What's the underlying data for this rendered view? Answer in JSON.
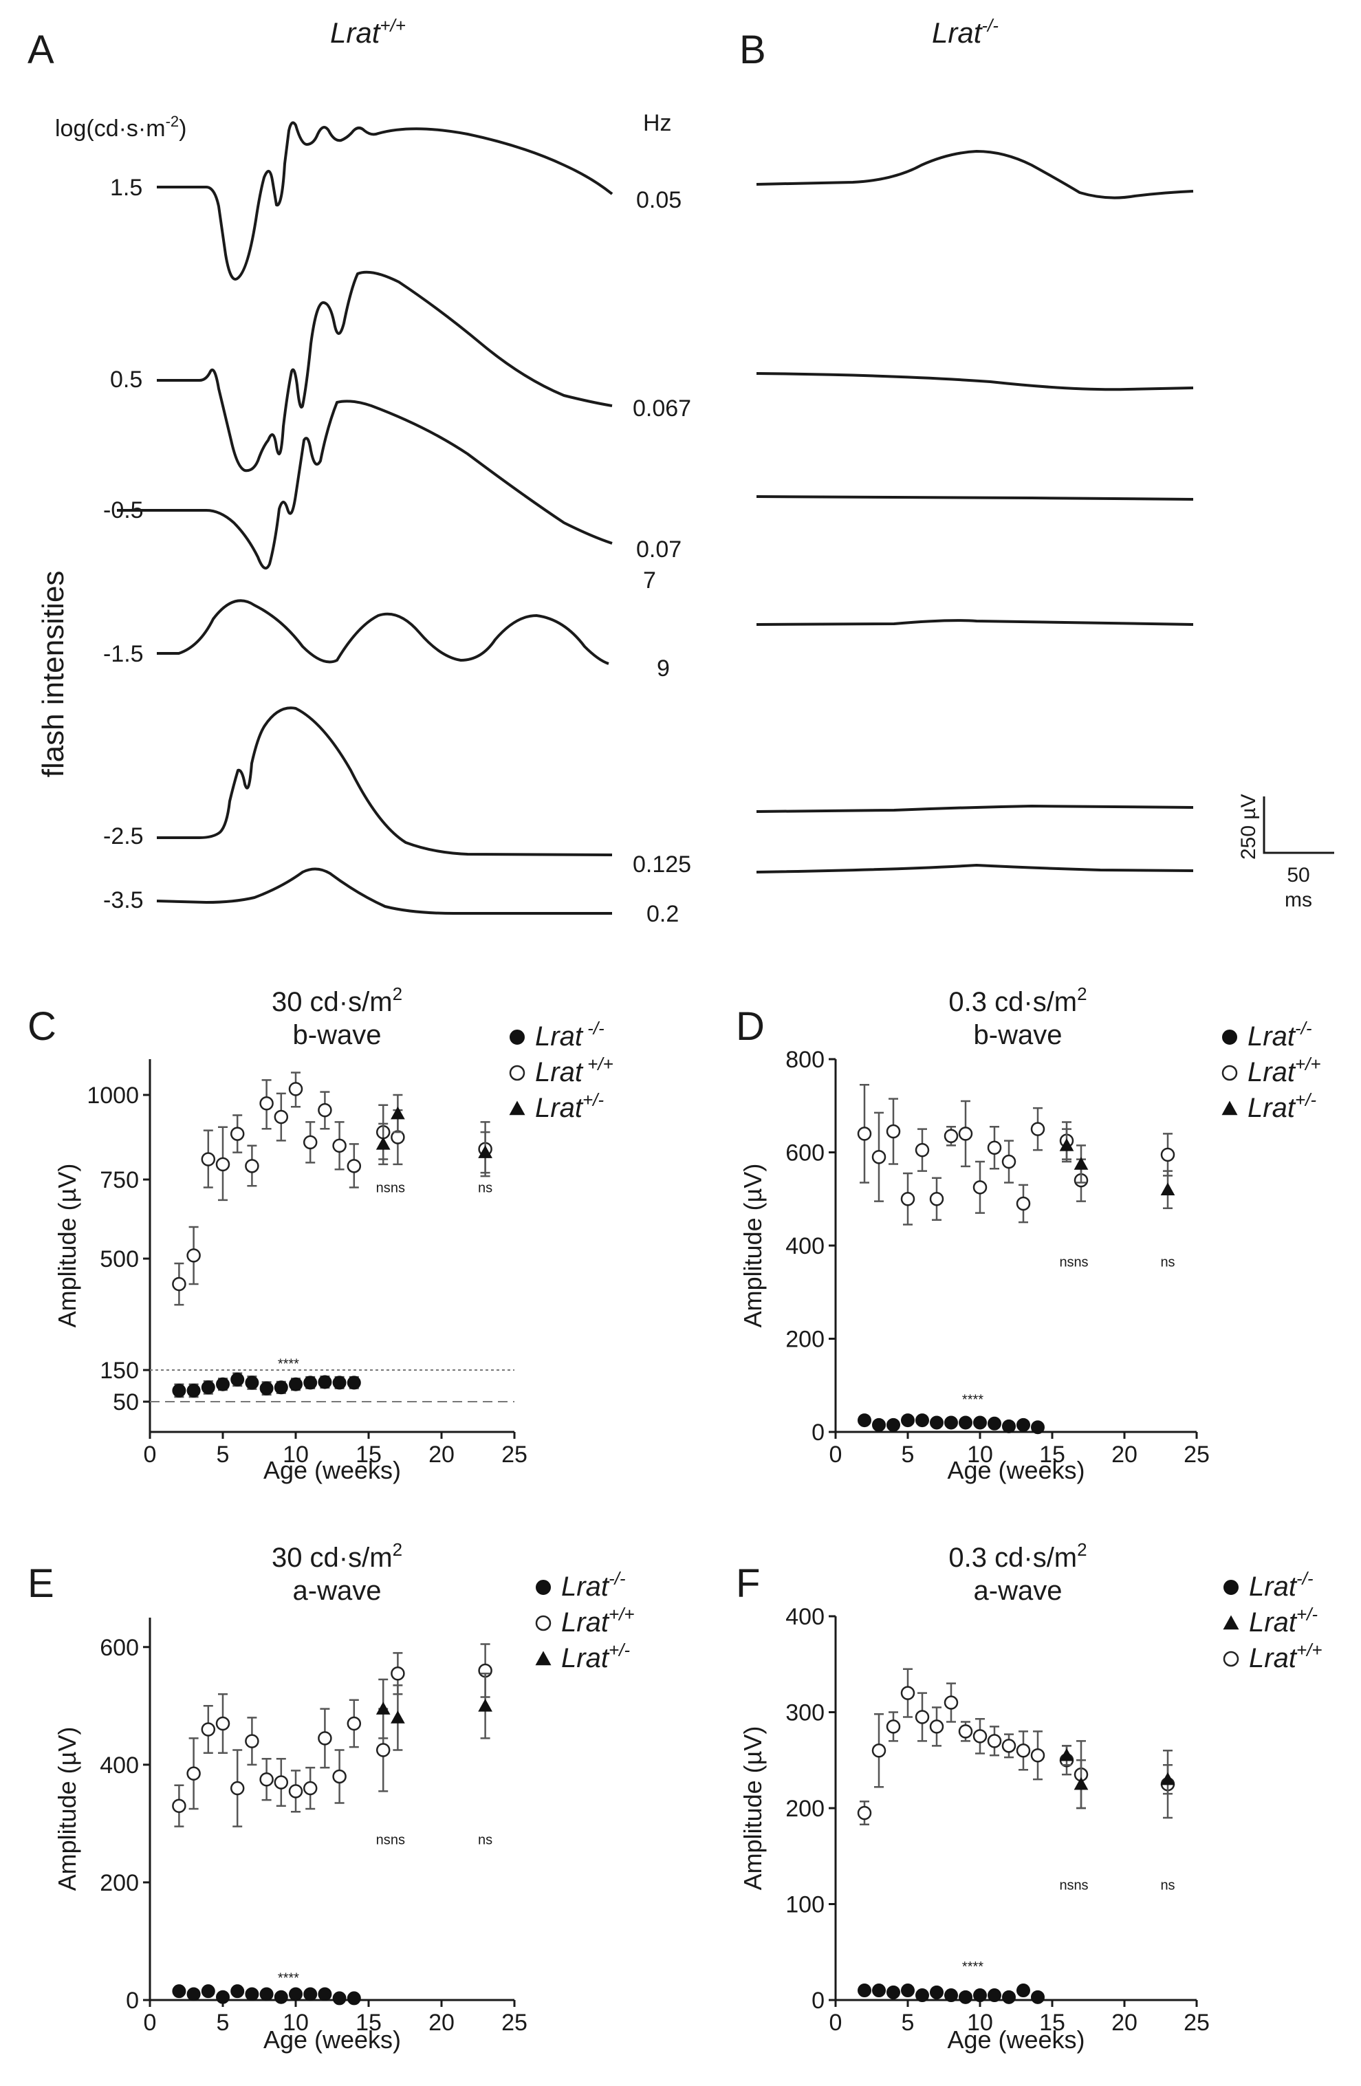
{
  "traces": {
    "panel_letters": [
      "A",
      "B"
    ],
    "title_wt": "Lrat",
    "title_wt_sup": "+/+",
    "title_ko": "Lrat",
    "title_ko_sup": "-/-",
    "intensity_unit": "log(cd·s·m",
    "intensity_unit_sup": "-2",
    "intensity_unit_end": ")",
    "freq_unit": "Hz",
    "y_label": "flash intensities",
    "intensities": [
      "1.5",
      "0.5",
      "-0.5",
      "-1.5",
      "-2.5",
      "-3.5"
    ],
    "frequencies": [
      "0.05",
      "0.067",
      "0.07",
      "7",
      "9",
      "0.125",
      "0.2"
    ],
    "scale_bar": {
      "voltage": "250 µV",
      "time": "50",
      "time_unit": "ms"
    }
  },
  "chart_data": [
    {
      "panel": "C",
      "type": "scatter",
      "title_line1": "30 cd·s/m",
      "title_sup": "2",
      "title_line2": "b-wave",
      "xlabel": "Age (weeks)",
      "ylabel": "Amplitude (µV)",
      "xlim": [
        0,
        25
      ],
      "xticks": [
        "0",
        "5",
        "10",
        "15",
        "20",
        "25"
      ],
      "ylim": [
        0,
        1120
      ],
      "yticks": [
        "50",
        "150",
        "500",
        "750",
        "1000"
      ],
      "ytick_values": [
        50,
        150,
        500,
        750,
        1000
      ],
      "ref_lines": [
        150,
        50
      ],
      "legend": [
        {
          "name": "Lrat",
          "sup": " -/-",
          "marker": "filled-circle"
        },
        {
          "name": "Lrat",
          "sup": " +/+",
          "marker": "open-circle"
        },
        {
          "name": "Lrat",
          "sup": "+/-",
          "marker": "filled-triangle"
        }
      ],
      "series": [
        {
          "name": "Lrat -/-",
          "marker": "filled-circle",
          "x": [
            2,
            3,
            4,
            5,
            6,
            7,
            8,
            9,
            10,
            11,
            12,
            13,
            14
          ],
          "y": [
            85,
            85,
            95,
            105,
            120,
            110,
            92,
            95,
            105,
            110,
            112,
            110,
            110
          ],
          "err": [
            20,
            20,
            20,
            18,
            20,
            20,
            20,
            18,
            18,
            18,
            18,
            18,
            18
          ]
        },
        {
          "name": "Lrat +/+",
          "marker": "open-circle",
          "x": [
            2,
            3,
            4,
            5,
            6,
            7,
            8,
            9,
            10,
            11,
            12,
            13,
            14,
            16,
            17,
            23
          ],
          "y": [
            420,
            510,
            810,
            795,
            885,
            790,
            975,
            935,
            1020,
            860,
            955,
            850,
            790,
            890,
            875,
            840
          ],
          "err": [
            65,
            90,
            85,
            110,
            55,
            60,
            75,
            70,
            55,
            60,
            55,
            70,
            65,
            80,
            80,
            80
          ]
        },
        {
          "name": "Lrat +/-",
          "marker": "filled-triangle",
          "x": [
            16,
            17,
            23
          ],
          "y": [
            855,
            945,
            830
          ],
          "err": [
            60,
            55,
            60
          ]
        }
      ],
      "annotations": [
        {
          "text": "****",
          "x": 9.5,
          "y": 155
        },
        {
          "text": "ns",
          "x": 16,
          "y": 710
        },
        {
          "text": "ns",
          "x": 17,
          "y": 710
        },
        {
          "text": "ns",
          "x": 23,
          "y": 710
        }
      ]
    },
    {
      "panel": "D",
      "type": "scatter",
      "title_line1": "0.3 cd·s/m",
      "title_sup": "2",
      "title_line2": "b-wave",
      "xlabel": "Age (weeks)",
      "ylabel": "Amplitude (µV)",
      "xlim": [
        0,
        25
      ],
      "xticks": [
        "0",
        "5",
        "10",
        "15",
        "20",
        "25"
      ],
      "ylim": [
        0,
        800
      ],
      "yticks": [
        "0",
        "200",
        "400",
        "600",
        "800"
      ],
      "ytick_values": [
        0,
        200,
        400,
        600,
        800
      ],
      "ref_lines": [],
      "legend": [
        {
          "name": "Lrat",
          "sup": "-/-",
          "marker": "filled-circle"
        },
        {
          "name": "Lrat",
          "sup": "+/+",
          "marker": "open-circle"
        },
        {
          "name": "Lrat",
          "sup": "+/-",
          "marker": "filled-triangle"
        }
      ],
      "series": [
        {
          "name": "Lrat -/-",
          "marker": "filled-circle",
          "x": [
            2,
            3,
            4,
            5,
            6,
            7,
            8,
            9,
            10,
            11,
            12,
            13,
            14
          ],
          "y": [
            25,
            15,
            15,
            25,
            25,
            20,
            20,
            20,
            20,
            18,
            12,
            15,
            10
          ],
          "err": [
            3,
            3,
            3,
            3,
            3,
            3,
            3,
            3,
            3,
            3,
            3,
            3,
            3
          ]
        },
        {
          "name": "Lrat +/+",
          "marker": "open-circle",
          "x": [
            2,
            3,
            4,
            5,
            6,
            7,
            8,
            9,
            10,
            11,
            12,
            13,
            14,
            16,
            17,
            23
          ],
          "y": [
            640,
            590,
            645,
            500,
            605,
            500,
            635,
            640,
            525,
            610,
            580,
            490,
            650,
            625,
            540,
            595
          ],
          "err": [
            105,
            95,
            70,
            55,
            45,
            45,
            20,
            70,
            55,
            45,
            45,
            40,
            45,
            40,
            45,
            45
          ]
        },
        {
          "name": "Lrat +/-",
          "marker": "filled-triangle",
          "x": [
            16,
            17,
            23
          ],
          "y": [
            615,
            575,
            520
          ],
          "err": [
            35,
            40,
            40
          ]
        }
      ],
      "annotations": [
        {
          "text": "****",
          "x": 9.5,
          "y": 60
        },
        {
          "text": "ns",
          "x": 16,
          "y": 355
        },
        {
          "text": "ns",
          "x": 17,
          "y": 355
        },
        {
          "text": "ns",
          "x": 23,
          "y": 355
        }
      ]
    },
    {
      "panel": "E",
      "type": "scatter",
      "title_line1": "30 cd·s/m",
      "title_sup": "2",
      "title_line2": "a-wave",
      "xlabel": "Age (weeks)",
      "ylabel": "Amplitude (µV)",
      "xlim": [
        0,
        25
      ],
      "xticks": [
        "0",
        "5",
        "10",
        "15",
        "20",
        "25"
      ],
      "ylim": [
        0,
        650
      ],
      "yticks": [
        "0",
        "200",
        "400",
        "600"
      ],
      "ytick_values": [
        0,
        200,
        400,
        600
      ],
      "ref_lines": [],
      "legend": [
        {
          "name": "Lrat",
          "sup": "-/-",
          "marker": "filled-circle"
        },
        {
          "name": "Lrat",
          "sup": "+/+",
          "marker": "open-circle"
        },
        {
          "name": "Lrat",
          "sup": "+/-",
          "marker": "filled-triangle"
        }
      ],
      "series": [
        {
          "name": "Lrat -/-",
          "marker": "filled-circle",
          "x": [
            2,
            3,
            4,
            5,
            6,
            7,
            8,
            9,
            10,
            11,
            12,
            13,
            14
          ],
          "y": [
            15,
            10,
            15,
            5,
            15,
            10,
            10,
            5,
            10,
            10,
            10,
            3,
            3
          ],
          "err": [
            3,
            3,
            3,
            3,
            3,
            3,
            3,
            3,
            3,
            3,
            3,
            3,
            3
          ]
        },
        {
          "name": "Lrat +/+",
          "marker": "open-circle",
          "x": [
            2,
            3,
            4,
            5,
            6,
            7,
            8,
            9,
            10,
            11,
            12,
            13,
            14,
            16,
            17,
            23
          ],
          "y": [
            330,
            385,
            460,
            470,
            360,
            440,
            375,
            370,
            355,
            360,
            445,
            380,
            470,
            425,
            555,
            560
          ],
          "err": [
            35,
            60,
            40,
            50,
            65,
            40,
            35,
            40,
            35,
            35,
            50,
            45,
            40,
            70,
            35,
            45
          ]
        },
        {
          "name": "Lrat +/-",
          "marker": "filled-triangle",
          "x": [
            16,
            17,
            23
          ],
          "y": [
            495,
            480,
            500
          ],
          "err": [
            50,
            55,
            55
          ]
        }
      ],
      "annotations": [
        {
          "text": "****",
          "x": 9.5,
          "y": 30
        },
        {
          "text": "ns",
          "x": 16,
          "y": 265
        },
        {
          "text": "ns",
          "x": 17,
          "y": 265
        },
        {
          "text": "ns",
          "x": 23,
          "y": 265
        }
      ]
    },
    {
      "panel": "F",
      "type": "scatter",
      "title_line1": "0.3 cd·s/m",
      "title_sup": "2",
      "title_line2": "a-wave",
      "xlabel": "Age (weeks)",
      "ylabel": "Amplitude (µV)",
      "xlim": [
        0,
        25
      ],
      "xticks": [
        "0",
        "5",
        "10",
        "15",
        "20",
        "25"
      ],
      "ylim": [
        0,
        400
      ],
      "yticks": [
        "0",
        "100",
        "200",
        "300",
        "400"
      ],
      "ytick_values": [
        0,
        100,
        200,
        300,
        400
      ],
      "ref_lines": [],
      "legend": [
        {
          "name": "Lrat",
          "sup": "-/-",
          "marker": "filled-circle"
        },
        {
          "name": "Lrat",
          "sup": "+/-",
          "marker": "filled-triangle"
        },
        {
          "name": "Lrat",
          "sup": "+/+",
          "marker": "open-circle"
        }
      ],
      "series": [
        {
          "name": "Lrat -/-",
          "marker": "filled-circle",
          "x": [
            2,
            3,
            4,
            5,
            6,
            7,
            8,
            9,
            10,
            11,
            12,
            13,
            14
          ],
          "y": [
            10,
            10,
            8,
            10,
            5,
            8,
            5,
            3,
            5,
            5,
            3,
            10,
            3
          ],
          "err": [
            2,
            2,
            2,
            2,
            2,
            2,
            2,
            2,
            2,
            2,
            2,
            2,
            2
          ]
        },
        {
          "name": "Lrat +/+",
          "marker": "open-circle",
          "x": [
            2,
            3,
            4,
            5,
            6,
            7,
            8,
            9,
            10,
            11,
            12,
            13,
            14,
            16,
            17,
            23
          ],
          "y": [
            195,
            260,
            285,
            320,
            295,
            285,
            310,
            280,
            275,
            270,
            265,
            260,
            255,
            250,
            235,
            225
          ],
          "err": [
            12,
            38,
            15,
            25,
            25,
            20,
            20,
            10,
            18,
            15,
            12,
            20,
            25,
            15,
            35,
            35
          ]
        },
        {
          "name": "Lrat +/-",
          "marker": "filled-triangle",
          "x": [
            16,
            17,
            23
          ],
          "y": [
            255,
            225,
            230
          ],
          "err": [
            10,
            25,
            15
          ]
        }
      ],
      "annotations": [
        {
          "text": "****",
          "x": 9.5,
          "y": 30
        },
        {
          "text": "ns",
          "x": 16,
          "y": 115
        },
        {
          "text": "ns",
          "x": 17,
          "y": 115
        },
        {
          "text": "ns",
          "x": 23,
          "y": 115
        }
      ]
    }
  ]
}
